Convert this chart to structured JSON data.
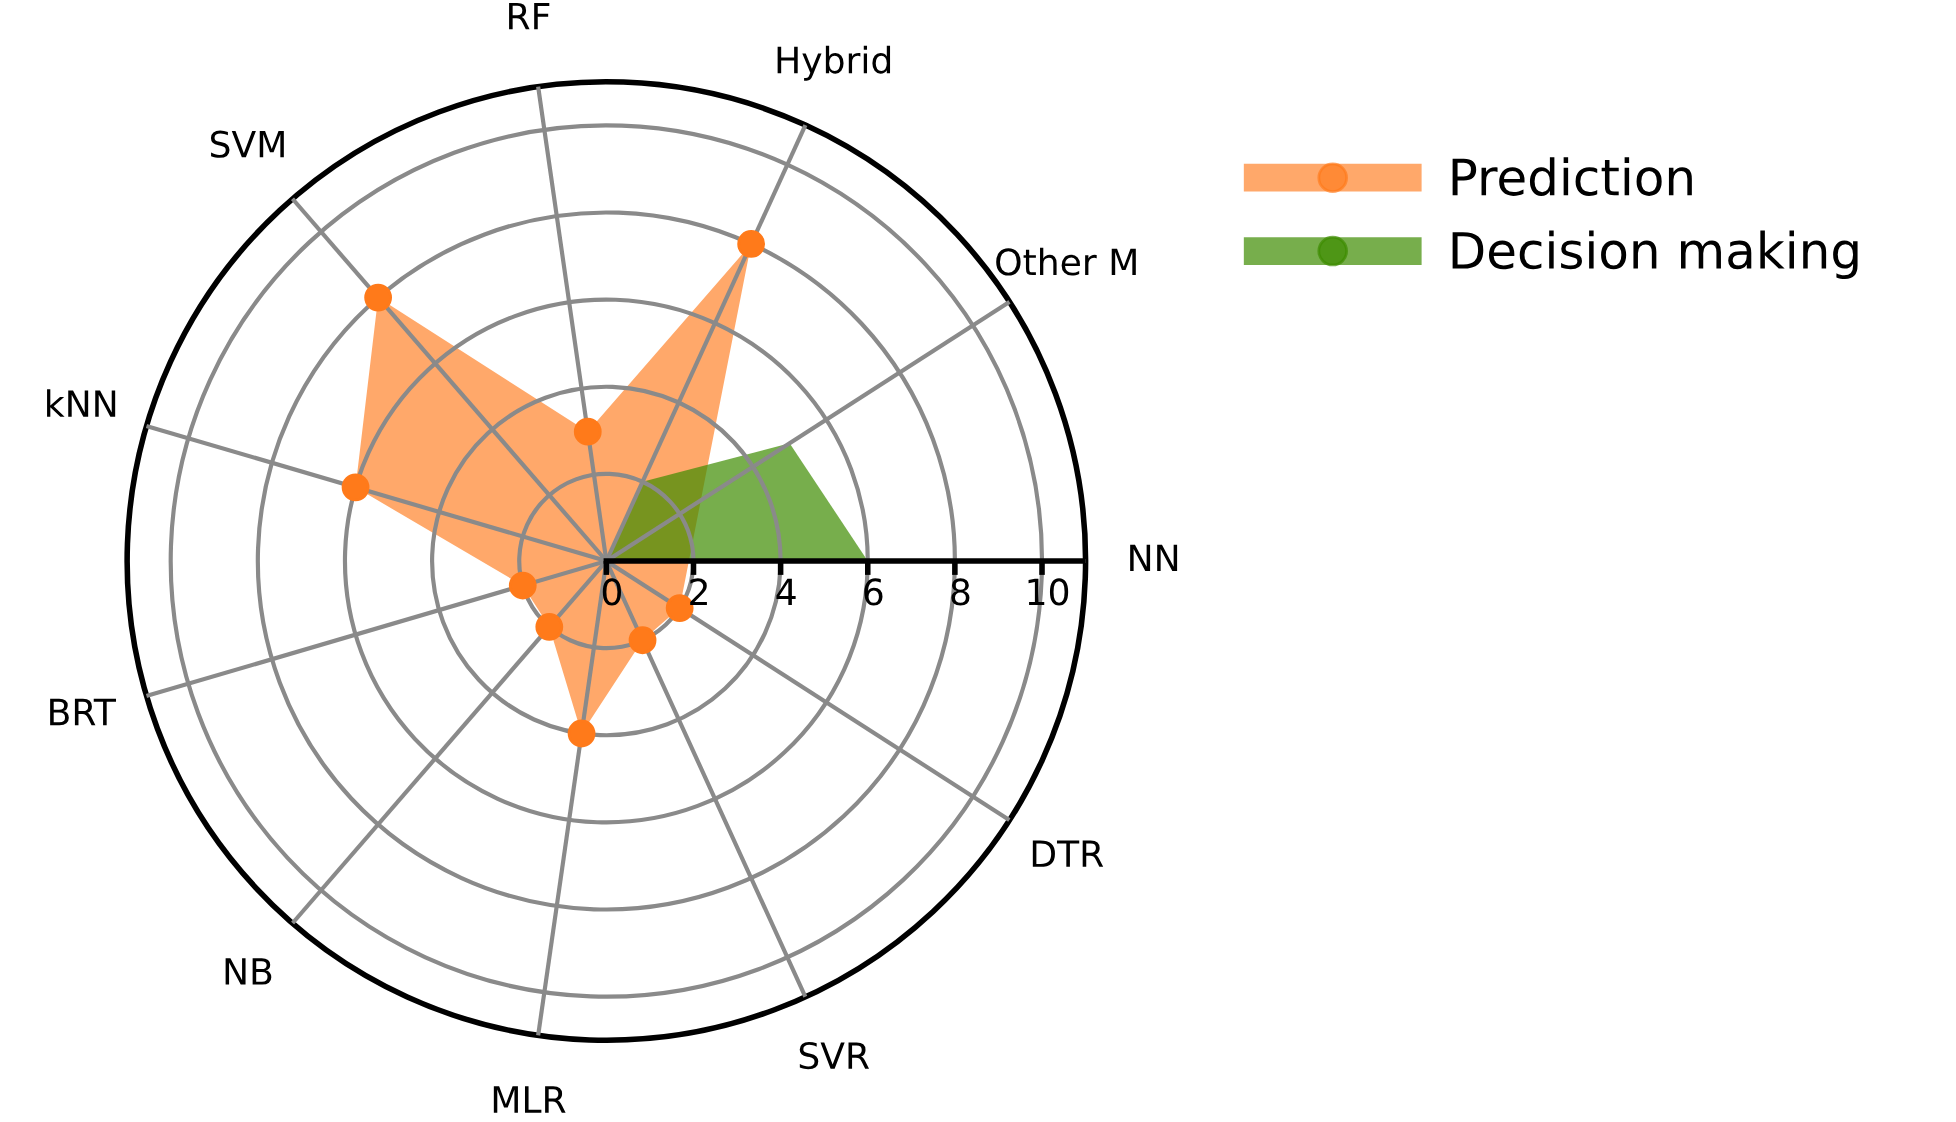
{
  "chart_data": {
    "type": "radar",
    "categories": [
      "Hybrid",
      "Other M",
      "NN",
      "DTR",
      "SVR",
      "MLR",
      "NB",
      "BRT",
      "kNN",
      "SVM",
      "RF"
    ],
    "series": [
      {
        "name": "Prediction",
        "color": "#ff7a1a",
        "values": [
          8,
          null,
          null,
          2,
          2,
          4,
          2,
          2,
          6,
          8,
          3
        ]
      },
      {
        "name": "Decision making",
        "color": "#3d8c00",
        "values": [
          2,
          5,
          6,
          0,
          0,
          0,
          0,
          0,
          0,
          0,
          0
        ]
      }
    ],
    "ylim": [
      0,
      11
    ],
    "yticks": [
      0,
      2,
      4,
      6,
      8,
      10
    ],
    "grid": true,
    "legend": "top right",
    "marker": "circle"
  }
}
